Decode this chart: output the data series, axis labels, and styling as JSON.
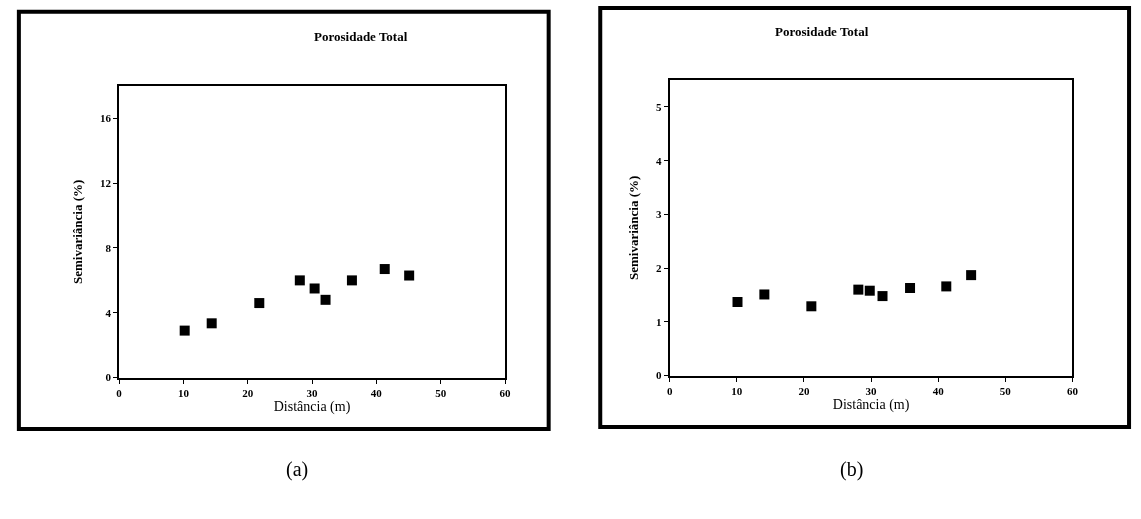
{
  "chart_data": [
    {
      "type": "scatter",
      "title": "Porosidade Total",
      "xlabel": "Distância (m)",
      "ylabel": "Semivariância (%)",
      "annotations": [
        "(a)"
      ],
      "marker": "square",
      "xlim": [
        0,
        60
      ],
      "xticks": [
        0,
        10,
        20,
        30,
        40,
        50,
        60
      ],
      "ylim": [
        0,
        18
      ],
      "yticks": [
        0,
        4,
        8,
        12,
        16
      ],
      "x": [
        10.2,
        14.4,
        21.8,
        28.1,
        30.4,
        32.1,
        36.2,
        41.3,
        45.1
      ],
      "series": [
        {
          "color": "#000000",
          "values": [
            2.9,
            3.35,
            4.6,
            6.0,
            5.5,
            4.8,
            6.0,
            6.7,
            6.3
          ]
        }
      ]
    },
    {
      "type": "scatter",
      "title": "Porosidade Total",
      "xlabel": "Distância (m)",
      "ylabel": "Semivariância (%)",
      "annotations": [
        "(b)"
      ],
      "marker": "square",
      "xlim": [
        0,
        60
      ],
      "xticks": [
        0,
        10,
        20,
        30,
        40,
        50,
        60
      ],
      "ylim": [
        0,
        5.5
      ],
      "yticks": [
        0,
        1,
        2,
        3,
        4,
        5
      ],
      "x": [
        10.1,
        14.1,
        21.1,
        28.1,
        29.8,
        31.7,
        35.8,
        41.2,
        44.9
      ],
      "series": [
        {
          "color": "#000000",
          "values": [
            1.37,
            1.51,
            1.29,
            1.6,
            1.58,
            1.48,
            1.63,
            1.66,
            1.87
          ]
        }
      ]
    }
  ]
}
